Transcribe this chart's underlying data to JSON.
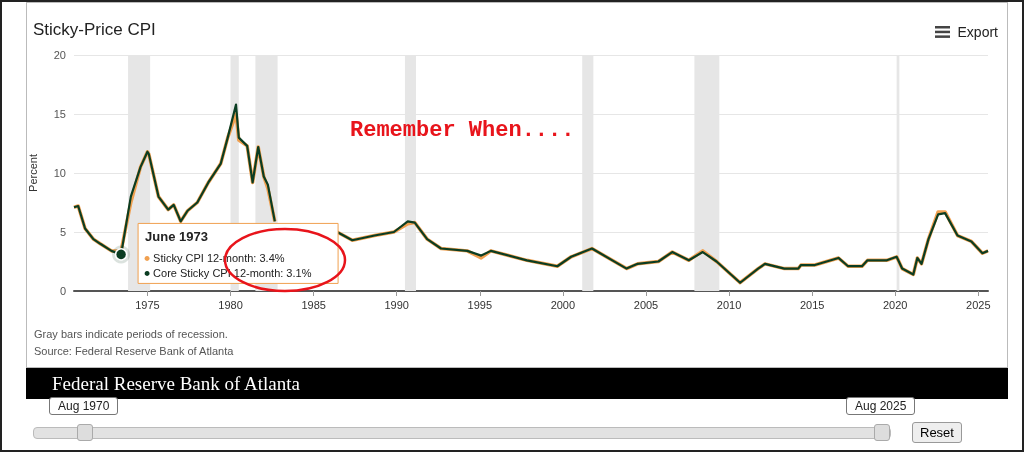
{
  "chart_data": {
    "type": "line",
    "title": "Sticky-Price CPI",
    "ylabel": "Percent",
    "x": [
      "1970-08",
      "1970-11",
      "1971-04",
      "1971-10",
      "1972-03",
      "1972-11",
      "1973-06",
      "1974-01",
      "1974-08",
      "1975-01",
      "1975-02",
      "1975-09",
      "1976-04",
      "1976-08",
      "1977-01",
      "1977-06",
      "1978-01",
      "1978-09",
      "1979-06",
      "1979-11",
      "1980-05",
      "1980-07",
      "1981-01",
      "1981-05",
      "1981-09",
      "1982-01",
      "1982-04",
      "1982-09",
      "1983-01",
      "1983-07",
      "1984-06",
      "1985-06",
      "1986-06",
      "1987-05",
      "1988-09",
      "1989-11",
      "1990-09",
      "1991-02",
      "1991-11",
      "1992-09",
      "1994-04",
      "1995-02",
      "1995-09",
      "1997-11",
      "1999-09",
      "2000-07",
      "2001-10",
      "2003-11",
      "2004-07",
      "2005-10",
      "2006-08",
      "2007-08",
      "2008-06",
      "2009-04",
      "2010-09",
      "2011-10",
      "2012-03",
      "2013-05",
      "2014-03",
      "2014-05",
      "2015-03",
      "2016-08",
      "2017-03",
      "2018-01",
      "2018-05",
      "2019-07",
      "2020-02",
      "2020-06",
      "2021-02",
      "2021-05",
      "2021-08",
      "2022-01",
      "2022-08",
      "2023-01",
      "2023-10",
      "2024-08",
      "2025-04",
      "2025-08"
    ],
    "series": [
      {
        "color": "#f0a050",
        "values": [
          7.1,
          7.2,
          5.3,
          4.4,
          4.0,
          3.4,
          3.4,
          7.5,
          10.5,
          11.8,
          11.6,
          8.0,
          6.9,
          7.3,
          5.9,
          6.8,
          7.5,
          9.2,
          10.8,
          13.0,
          15.0,
          12.8,
          12.3,
          9.2,
          12.2,
          9.7,
          8.7,
          5.9,
          null,
          null,
          null,
          null,
          5.0,
          4.3,
          4.7,
          5.0,
          5.7,
          5.8,
          4.4,
          3.6,
          3.4,
          2.8,
          3.4,
          2.6,
          2.1,
          2.9,
          3.6,
          1.9,
          2.3,
          2.5,
          3.3,
          2.6,
          3.4,
          2.5,
          0.7,
          1.9,
          2.3,
          1.9,
          1.9,
          2.2,
          2.2,
          2.8,
          2.1,
          2.1,
          2.6,
          2.6,
          2.9,
          1.9,
          1.4,
          2.8,
          2.3,
          4.4,
          6.7,
          6.7,
          4.7,
          4.2,
          3.2,
          3.4
        ]
      },
      {
        "color": "#0b3d22",
        "values": [
          7.1,
          7.2,
          5.3,
          4.4,
          4.0,
          3.4,
          3.1,
          8.0,
          10.5,
          11.8,
          11.6,
          8.0,
          6.9,
          7.3,
          5.9,
          6.8,
          7.5,
          9.2,
          10.8,
          13.0,
          15.8,
          13.0,
          12.3,
          9.2,
          12.2,
          9.7,
          9.0,
          5.9,
          null,
          null,
          null,
          null,
          5.0,
          4.3,
          4.7,
          5.0,
          5.9,
          5.8,
          4.4,
          3.6,
          3.4,
          3.0,
          3.4,
          2.6,
          2.1,
          2.9,
          3.6,
          1.9,
          2.3,
          2.5,
          3.3,
          2.6,
          3.3,
          2.5,
          0.7,
          1.9,
          2.3,
          1.9,
          1.9,
          2.2,
          2.2,
          2.8,
          2.1,
          2.1,
          2.6,
          2.6,
          2.9,
          1.9,
          1.4,
          2.8,
          2.3,
          4.4,
          6.5,
          6.6,
          4.7,
          4.2,
          3.2,
          3.4
        ]
      }
    ],
    "xlim": [
      "1970-08",
      "2025-08"
    ],
    "xticks": [
      {
        "value": "1975",
        "label": "1975"
      },
      {
        "value": "1980",
        "label": "1980"
      },
      {
        "value": "1985",
        "label": "1985"
      },
      {
        "value": "1990",
        "label": "1990"
      },
      {
        "value": "1995",
        "label": "1995"
      },
      {
        "value": "2000",
        "label": "2000"
      },
      {
        "value": "2005",
        "label": "2005"
      },
      {
        "value": "2010",
        "label": "2010"
      },
      {
        "value": "2015",
        "label": "2015"
      },
      {
        "value": "2020",
        "label": "2020"
      },
      {
        "value": "2025",
        "label": "2025"
      }
    ],
    "ylim": [
      0,
      20
    ],
    "yticks": [
      0,
      5,
      10,
      15,
      20
    ],
    "grid": "y",
    "bands": [
      {
        "axis": "x",
        "from": "1973-11",
        "to": "1975-03",
        "color": "#e6e6e6"
      },
      {
        "axis": "x",
        "from": "1980-01",
        "to": "1980-07",
        "color": "#e6e6e6"
      },
      {
        "axis": "x",
        "from": "1981-07",
        "to": "1982-11",
        "color": "#e6e6e6"
      },
      {
        "axis": "x",
        "from": "1990-07",
        "to": "1991-03",
        "color": "#e6e6e6"
      },
      {
        "axis": "x",
        "from": "2001-03",
        "to": "2001-11",
        "color": "#e6e6e6"
      },
      {
        "axis": "x",
        "from": "2007-12",
        "to": "2009-06",
        "color": "#e6e6e6"
      },
      {
        "axis": "x",
        "from": "2020-02",
        "to": "2020-04",
        "color": "#e6e6e6"
      }
    ],
    "annotations": [
      "Remember When....",
      {
        "text": "June 1973",
        "x": "1973-06",
        "y": 3.1
      },
      "Sticky CPI 12-month: 3.4%",
      "Core Sticky CPI 12-month: 3.1%",
      "Gray bars indicate periods of recession.",
      "Source: Federal Reserve Bank of Atlanta",
      "Federal Reserve Bank of Atlanta",
      "Aug 1970",
      "Aug 2025",
      "Reset",
      "Export"
    ]
  }
}
